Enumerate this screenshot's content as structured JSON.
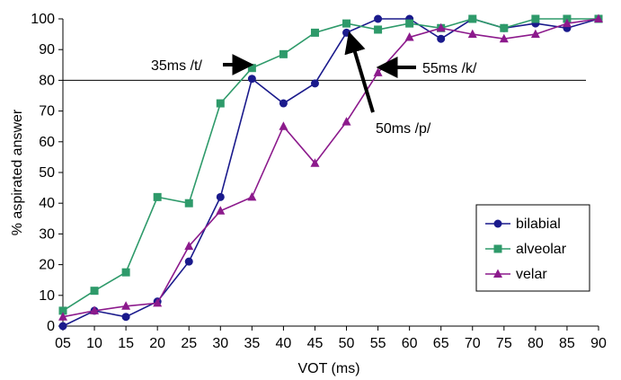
{
  "chart_data": {
    "type": "line",
    "title": "",
    "xlabel": "VOT (ms)",
    "ylabel": "% aspirated answer",
    "categories": [
      "05",
      "10",
      "15",
      "20",
      "25",
      "30",
      "35",
      "40",
      "45",
      "50",
      "55",
      "60",
      "65",
      "70",
      "75",
      "80",
      "85",
      "90"
    ],
    "ylim": [
      0,
      100
    ],
    "yticks": [
      0,
      10,
      20,
      30,
      40,
      50,
      60,
      70,
      80,
      90,
      100
    ],
    "grid": false,
    "legend_position": "bottom-right",
    "reference_line": 80,
    "series": [
      {
        "name": "bilabial",
        "color": "#1a1a8c",
        "marker": "circle",
        "values": [
          0,
          5,
          3,
          8,
          21,
          42,
          80.5,
          72.5,
          79,
          95.5,
          100,
          100,
          93.5,
          100,
          97,
          98.5,
          97,
          100
        ]
      },
      {
        "name": "alveolar",
        "color": "#2e9a6a",
        "marker": "square",
        "values": [
          5,
          11.5,
          17.5,
          42,
          40,
          72.5,
          84,
          88.5,
          95.5,
          98.5,
          96.5,
          98.5,
          97,
          100,
          97,
          100,
          100,
          100
        ]
      },
      {
        "name": "velar",
        "color": "#8c1a8c",
        "marker": "triangle",
        "values": [
          3,
          5,
          6.5,
          7.5,
          26,
          37.5,
          42,
          65,
          53,
          66.5,
          82.5,
          94,
          97,
          95,
          93.5,
          95,
          98.5,
          100
        ]
      }
    ],
    "annotations": [
      {
        "text": "35ms /t/",
        "x": "35",
        "y": 84
      },
      {
        "text": "55ms /k/",
        "x": "55",
        "y": 82.5
      },
      {
        "text": "50ms /p/",
        "x": "50",
        "y": 95.5
      }
    ]
  }
}
